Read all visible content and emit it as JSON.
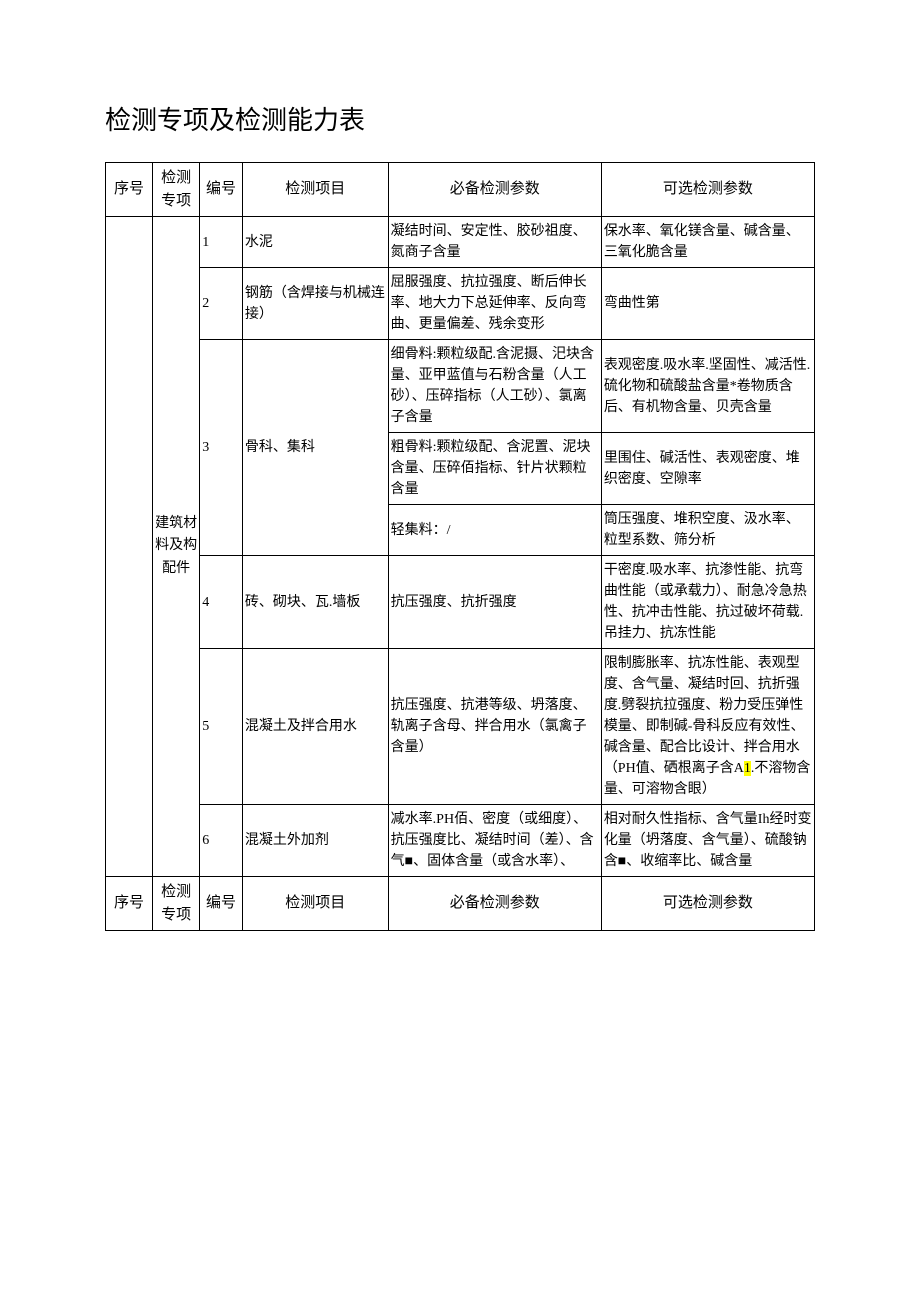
{
  "title": "检测专项及检测能力表",
  "headers": {
    "seq": "序号",
    "category": "检测专项",
    "num": "编号",
    "item": "检测项目",
    "required": "必备检测参数",
    "optional": "可选检测参数"
  },
  "category_label": "建筑材料及构配件",
  "rows": [
    {
      "num": "1",
      "item": "水泥",
      "required": "凝结时间、安定性、胶砂祖度、氮商子含量",
      "optional": "保水率、氧化镁含量、碱含量、三氧化脆含量"
    },
    {
      "num": "2",
      "item": "钢筋（含焊接与机械连接）",
      "required": "屈服强度、抗拉强度、断后伸长率、地大力下总延伸率、反向弯曲、更量偏差、残余变形",
      "optional": "弯曲性第"
    },
    {
      "num": "3",
      "item": "骨科、集科",
      "required_a": "细骨料:颗粒级配.含泥摄、汜块含量、亚甲蓝值与石粉含量（人工砂）、压碎指标（人工砂）、氯离子含量",
      "optional_a": "表观密度.吸水率.坚固性、减活性.硫化物和硫酸盐含量*卷物质含后、有机物含量、贝壳含量",
      "required_b": "粗骨料:颗粒级配、含泥置、泥块含量、压碎佰指标、针片状颗粒含量",
      "optional_b": "里围住、碱活性、表观密度、堆织密度、空隙率",
      "required_c": "轻集料：/",
      "optional_c": "筒压强度、堆积空度、汲水率、粒型系数、筛分析"
    },
    {
      "num": "4",
      "item": "砖、砌块、瓦.墙板",
      "required": "抗压强度、抗折强度",
      "optional": "干密度.吸水率、抗渗性能、抗弯曲性能（或承载力）、耐急冷急热性、抗冲击性能、抗过破坏荷载.吊挂力、抗冻性能"
    },
    {
      "num": "5",
      "item": "混凝土及拌合用水",
      "required": "抗压强度、抗港等级、坍落度、轨离子含母、拌合用水（氯禽子含量）",
      "optional_pre": "限制膨胀率、抗冻性能、表观型度、含气量、凝结时回、抗折强度.劈裂抗拉强度、粉力受压弹性模量、即制碱-骨科反应有效性、碱含量、配合比设计、拌合用水（PH值、硒根离子含A",
      "optional_highlight": "1",
      "optional_post": ".不溶物含量、可溶物含眼）"
    },
    {
      "num": "6",
      "item": "混凝土外加剂",
      "required": "减水率.PH佰、密度（或细度）、抗压强度比、凝结时间（差）、含气■、固体含量（或含水率）、",
      "optional": "相对耐久性指标、含气量Ih经时变化量（坍落度、含气量）、硫酸钠含■、收缩率比、碱含量"
    }
  ],
  "colors": {
    "highlight": "#ffff00",
    "text": "#000000",
    "background": "#ffffff",
    "border": "#000000"
  },
  "fonts": {
    "title_size": 26,
    "body_size": 14,
    "header_size": 15
  }
}
